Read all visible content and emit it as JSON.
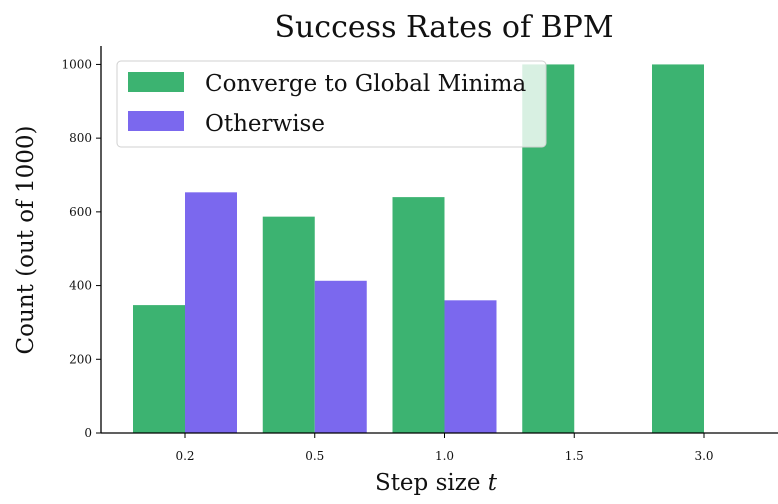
{
  "chart_data": {
    "type": "bar",
    "title": "Success Rates of BPM",
    "xlabel": "Step size",
    "xlabel_symbol": "t",
    "ylabel": "Count (out of 1000)",
    "categories": [
      "0.2",
      "0.5",
      "1.0",
      "1.5",
      "3.0"
    ],
    "series": [
      {
        "name": "Converge to Global Minima",
        "color": "#3cb371",
        "values": [
          347,
          587,
          640,
          1000,
          1000
        ]
      },
      {
        "name": "Otherwise",
        "color": "#7b68ee",
        "values": [
          653,
          413,
          360,
          0,
          0
        ]
      }
    ],
    "yticks": [
      0,
      200,
      400,
      600,
      800,
      1000
    ],
    "ylim": [
      0,
      1050
    ],
    "grid": false,
    "legend_position": "top-left"
  }
}
